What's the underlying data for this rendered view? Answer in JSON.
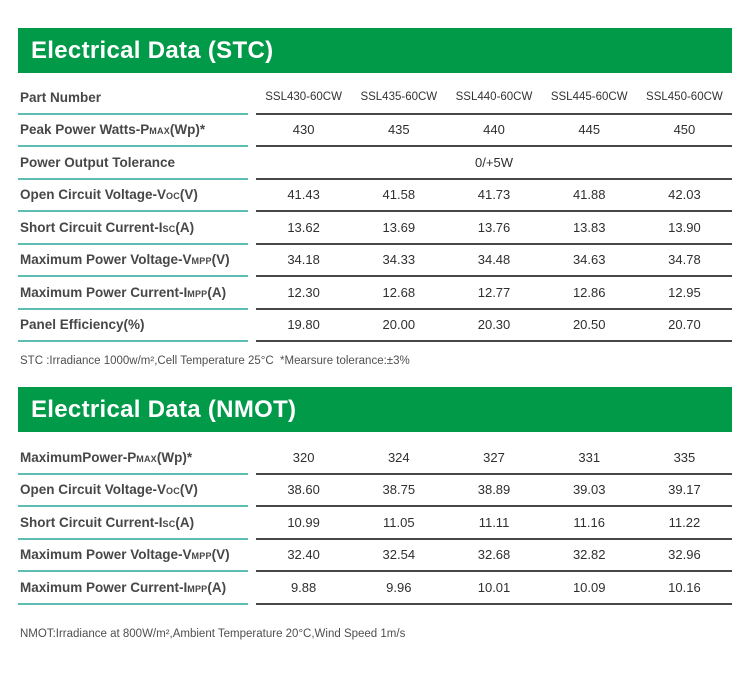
{
  "colors": {
    "header_green": "#009a49",
    "header_text": "#ffffff",
    "label_underline_teal": "#5dbdb5",
    "data_underline_gray": "#474747",
    "label_text": "#474747",
    "value_text": "#2f2f2f"
  },
  "sections": [
    {
      "title": "Electrical Data (STC)",
      "header_row": {
        "label": "Part Number",
        "columns": [
          "SSL430-60CW",
          "SSL435-60CW",
          "SSL440-60CW",
          "SSL445-60CW",
          "SSL450-60CW"
        ]
      },
      "rows": [
        {
          "label": "Peak Power Watts-P{MAX}(Wp)*",
          "values": [
            "430",
            "435",
            "440",
            "445",
            "450"
          ]
        },
        {
          "label": "Power Output Tolerance",
          "span_value": "0/+5W"
        },
        {
          "label": "Open Circuit Voltage-V{OC}(V)",
          "values": [
            "41.43",
            "41.58",
            "41.73",
            "41.88",
            "42.03"
          ]
        },
        {
          "label": "Short Circuit Current-I{SC}(A)",
          "values": [
            "13.62",
            "13.69",
            "13.76",
            "13.83",
            "13.90"
          ]
        },
        {
          "label": "Maximum Power Voltage-V{MPP}(V)",
          "values": [
            "34.18",
            "34.33",
            "34.48",
            "34.63",
            "34.78"
          ]
        },
        {
          "label": "Maximum Power Current-I{MPP}(A)",
          "values": [
            "12.30",
            "12.68",
            "12.77",
            "12.86",
            "12.95"
          ]
        },
        {
          "label": "Panel Efficiency(%)",
          "values": [
            "19.80",
            "20.00",
            "20.30",
            "20.50",
            "20.70"
          ]
        }
      ],
      "footnote": "STC :Irradiance 1000w/m²,Cell Temperature 25°C  *Mearsure tolerance:±3%"
    },
    {
      "title": "Electrical Data (NMOT)",
      "rows": [
        {
          "label": "MaximumPower-P{MAX}(Wp)*",
          "values": [
            "320",
            "324",
            "327",
            "331",
            "335"
          ]
        },
        {
          "label": "Open Circuit Voltage-V{OC}(V)",
          "values": [
            "38.60",
            "38.75",
            "38.89",
            "39.03",
            "39.17"
          ]
        },
        {
          "label": "Short Circuit Current-I{SC}(A)",
          "values": [
            "10.99",
            "11.05",
            "11.11",
            "11.16",
            "11.22"
          ]
        },
        {
          "label": "Maximum Power Voltage-V{MPP}(V)",
          "values": [
            "32.40",
            "32.54",
            "32.68",
            "32.82",
            "32.96"
          ]
        },
        {
          "label": "Maximum Power Current-I{MPP}(A)",
          "values": [
            "9.88",
            "9.96",
            "10.01",
            "10.09",
            "10.16"
          ]
        }
      ],
      "footnote": "NMOT:Irradiance at 800W/m²,Ambient Temperature 20°C,Wind Speed 1m/s"
    }
  ]
}
